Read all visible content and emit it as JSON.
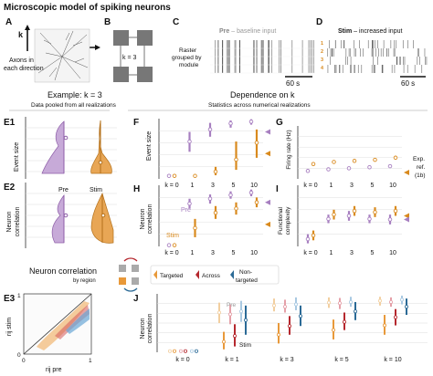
{
  "figure": {
    "panel_letters": {
      "A": "A",
      "B": "B",
      "C": "C",
      "D": "D",
      "E1": "E1",
      "E2": "E2",
      "E3": "E3",
      "F": "F",
      "G": "G",
      "H": "H",
      "I": "I",
      "J": "J"
    },
    "header": {
      "title": "Microscopic model of spiking neurons",
      "example_title": "Example: k = 3",
      "example_subtitle": "Data pooled from all realizations",
      "dependence_title": "Dependence on k",
      "dependence_subtitle": "Statistics across numerical realizations"
    },
    "panel_A": {
      "k_label": "k",
      "axon_label_line1": "Axons in",
      "axon_label_line2": "each direction"
    },
    "panel_B": {
      "k_eq": "k = 3"
    },
    "panel_C": {
      "title_bold": "Pre",
      "title_rest": " – baseline input",
      "raster_line1": "Raster",
      "raster_line2": "grouped by",
      "raster_line3": "module",
      "scalebar": "60 s"
    },
    "panel_D": {
      "title_bold": "Stim",
      "title_rest": " – increased input",
      "module_labels": [
        "1",
        "2",
        "3",
        "4"
      ],
      "scalebar": "60 s"
    },
    "panel_E1": {
      "ylabel": "Event size"
    },
    "panel_E2": {
      "ylabel_line1": "Neuron",
      "ylabel_line2": "correlation",
      "pre_label": "Pre",
      "stim_label": "Stim"
    },
    "panel_E3": {
      "title": "Neuron correlation",
      "subtitle": "by region",
      "xlabel": "rij pre",
      "ylabel": "rij stim",
      "ticks": [
        "0",
        "1"
      ]
    },
    "panel_F": {
      "ylabel": "Event size",
      "k_ticks": [
        "k = 0",
        "1",
        "3",
        "5",
        "10"
      ]
    },
    "panel_G": {
      "ylabel": "Firing rate (Hz)",
      "k_ticks": [
        "k = 0",
        "1",
        "3",
        "5",
        "10"
      ],
      "exp_ref": [
        "Exp.",
        "ref.",
        "(1b)"
      ]
    },
    "panel_H": {
      "ylabel_line1": "Neuron",
      "ylabel_line2": "correlation",
      "pre_label": "Pre",
      "stim_label": "Stim",
      "k_ticks": [
        "k = 0",
        "1",
        "3",
        "5",
        "10"
      ]
    },
    "panel_I": {
      "ylabel_line1": "Functional",
      "ylabel_line2": "complexity",
      "k_ticks": [
        "k = 0",
        "1",
        "3",
        "5",
        "10"
      ]
    },
    "legend": {
      "targeted": "Targeted",
      "across": "Across",
      "non_targeted_1": "Non-",
      "non_targeted_2": "targeted"
    },
    "panel_J": {
      "ylabel_line1": "Neuron",
      "ylabel_line2": "correlation",
      "pre_label": "Pre",
      "stim_label": "Stim",
      "k_ticks": [
        "k = 0",
        "k = 1",
        "k = 3",
        "k = 5",
        "k = 10"
      ]
    },
    "colors": {
      "pre": "#a77fc0",
      "stim": "#d98a1e",
      "targeted": "#e8993a",
      "across": "#b5282e",
      "non_targeted": "#2b6a96",
      "grid": "#dddddd"
    }
  }
}
